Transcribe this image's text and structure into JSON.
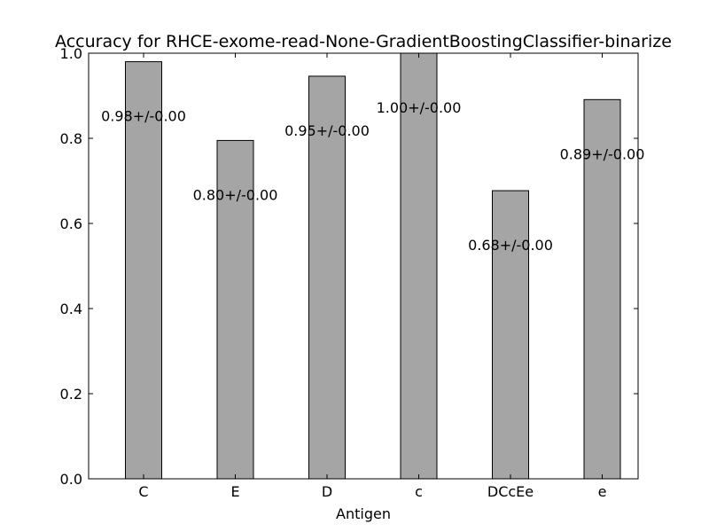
{
  "chart_data": {
    "type": "bar",
    "title": "Accuracy for RHCE-exome-read-None-GradientBoostingClassifier-binarize",
    "xlabel": "Antigen",
    "ylabel": "",
    "categories": [
      "C",
      "E",
      "D",
      "c",
      "DCcEe",
      "e"
    ],
    "values": [
      0.98,
      0.795,
      0.946,
      1.0,
      0.677,
      0.891
    ],
    "value_labels": [
      "0.98+/-0.00",
      "0.80+/-0.00",
      "0.95+/-0.00",
      "1.00+/-0.00",
      "0.68+/-0.00",
      "0.89+/-0.00"
    ],
    "ylim": [
      0,
      1.0
    ],
    "yticks": [
      "0.0",
      "0.2",
      "0.4",
      "0.6",
      "0.8",
      "1.0"
    ],
    "bar_color": "#a5a5a5",
    "edge_color": "#000000",
    "grid": false,
    "legend": "none"
  }
}
